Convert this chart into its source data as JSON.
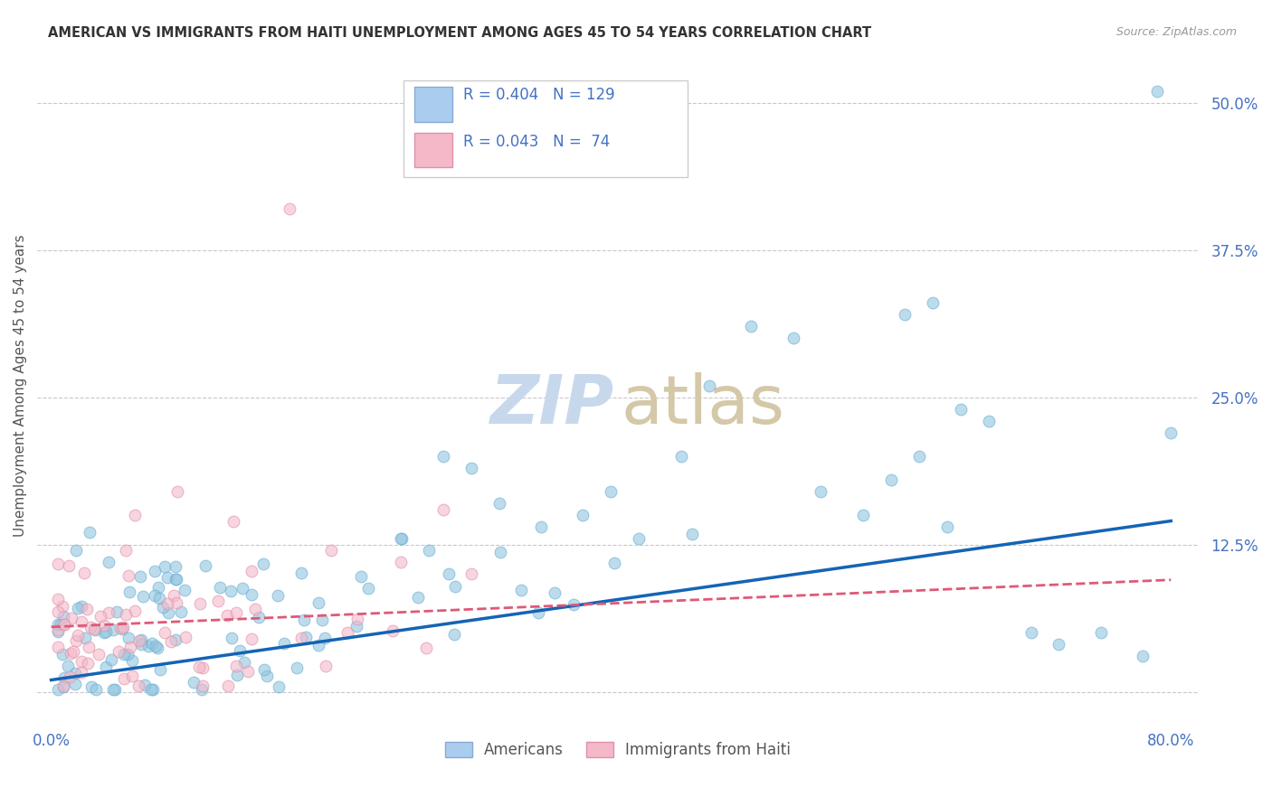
{
  "title": "AMERICAN VS IMMIGRANTS FROM HAITI UNEMPLOYMENT AMONG AGES 45 TO 54 YEARS CORRELATION CHART",
  "source": "Source: ZipAtlas.com",
  "ylabel": "Unemployment Among Ages 45 to 54 years",
  "xlim": [
    -0.01,
    0.82
  ],
  "ylim": [
    -0.025,
    0.545
  ],
  "xtick_vals": [
    0.0,
    0.1,
    0.2,
    0.3,
    0.4,
    0.5,
    0.6,
    0.7,
    0.8
  ],
  "xticklabels": [
    "0.0%",
    "",
    "",
    "",
    "",
    "",
    "",
    "",
    "80.0%"
  ],
  "ytick_vals": [
    0.0,
    0.125,
    0.25,
    0.375,
    0.5
  ],
  "yticklabels_right": [
    "",
    "12.5%",
    "25.0%",
    "37.5%",
    "50.0%"
  ],
  "grid_color": "#c8c8c8",
  "background_color": "#ffffff",
  "am_color": "#92c5de",
  "am_edge_color": "#6baed6",
  "am_line_color": "#1464b4",
  "ht_color": "#f4b8c8",
  "ht_edge_color": "#e090a8",
  "ht_line_color": "#e05878",
  "tick_color": "#4472c4",
  "text_color": "#333333",
  "source_color": "#999999",
  "ylabel_color": "#555555",
  "legend_text_color": "#4472c4",
  "americans_R": 0.404,
  "americans_N": 129,
  "haiti_R": 0.043,
  "haiti_N": 74,
  "am_line_x0": 0.0,
  "am_line_y0": 0.01,
  "am_line_x1": 0.8,
  "am_line_y1": 0.145,
  "ht_line_x0": 0.0,
  "ht_line_y0": 0.055,
  "ht_line_x1": 0.8,
  "ht_line_y1": 0.095
}
